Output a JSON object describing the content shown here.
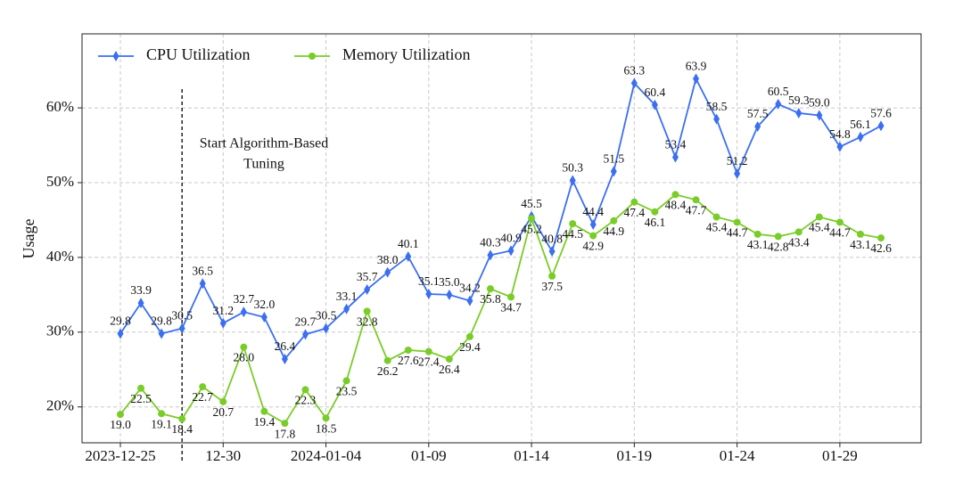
{
  "chart_data": {
    "type": "line",
    "ylabel": "Usage",
    "annotation": [
      "Start Algorithm-Based",
      "Tuning"
    ],
    "categories": [
      "2023-12-25",
      null,
      null,
      null,
      null,
      "12-30",
      null,
      null,
      null,
      null,
      "2024-01-04",
      null,
      null,
      null,
      null,
      "01-09",
      null,
      null,
      null,
      null,
      "01-14",
      null,
      null,
      null,
      null,
      "01-19",
      null,
      null,
      null,
      null,
      "01-24",
      null,
      null,
      null,
      null,
      "01-29",
      null,
      null
    ],
    "series": [
      {
        "name": "CPU Utilization",
        "color": "#3b6ff0",
        "marker": "diamond",
        "values": [
          29.8,
          33.9,
          29.8,
          30.5,
          36.5,
          31.2,
          32.7,
          32.0,
          26.4,
          29.7,
          30.5,
          33.1,
          35.7,
          38.0,
          40.1,
          35.1,
          35.0,
          34.2,
          40.3,
          40.9,
          45.5,
          40.8,
          50.3,
          44.4,
          51.5,
          63.3,
          60.4,
          53.4,
          63.9,
          58.5,
          51.2,
          57.5,
          60.5,
          59.3,
          59.0,
          54.8,
          56.1,
          57.6
        ],
        "value_labels": [
          "29.8",
          "33.9",
          "29.8",
          "30.5",
          "36.5",
          "31.2",
          "32.7",
          "32.0",
          "26.4",
          "29.7",
          "30.5",
          "33.1",
          "35.7",
          "38.0",
          "40.1",
          "35.1",
          "35.0",
          "34.2",
          "40.3",
          "40.9",
          "45.5",
          "40.8",
          "50.3",
          "44.4",
          "51.5",
          "63.3",
          "60.4",
          "53.4",
          "63.9",
          "58.5",
          "51.2",
          "57.5",
          "60.5",
          "59.3",
          "59.0",
          "54.8",
          "56.1",
          "57.6"
        ]
      },
      {
        "name": "Memory Utilization",
        "color": "#7acc29",
        "marker": "circle",
        "values": [
          19.0,
          22.5,
          19.1,
          18.4,
          22.7,
          20.7,
          28.0,
          19.4,
          17.8,
          22.3,
          18.5,
          23.5,
          32.8,
          26.2,
          27.6,
          27.4,
          26.4,
          29.4,
          35.8,
          34.7,
          45.2,
          37.5,
          44.5,
          42.9,
          44.9,
          47.4,
          46.1,
          48.4,
          47.7,
          45.4,
          44.7,
          43.1,
          42.8,
          43.4,
          45.4,
          44.7,
          43.1,
          42.6
        ],
        "value_labels": [
          "19.0",
          "22.5",
          "19.1",
          "18.4",
          "22.7",
          "20.7",
          "28.0",
          "19.4",
          "17.8",
          "22.3",
          "18.5",
          "23.5",
          "32.8",
          "26.2",
          "27.6",
          "27.4",
          "26.4",
          "29.4",
          "35.8",
          "34.7",
          "45.2",
          "37.5",
          "44.5",
          "42.9",
          "44.9",
          "47.4",
          "46.1",
          "48.4",
          "47.7",
          "45.4",
          "44.7",
          "43.1",
          "42.8",
          "43.4",
          "45.4",
          "44.7",
          "43.1",
          "42.6"
        ]
      }
    ],
    "ylim": [
      15.2,
      69.9
    ],
    "yticks": [
      {
        "value": 20,
        "label": "20%"
      },
      {
        "value": 30,
        "label": "30%"
      },
      {
        "value": 40,
        "label": "40%"
      },
      {
        "value": 50,
        "label": "50%"
      },
      {
        "value": 60,
        "label": "60%"
      }
    ],
    "grid": true,
    "legend": "upper left"
  }
}
